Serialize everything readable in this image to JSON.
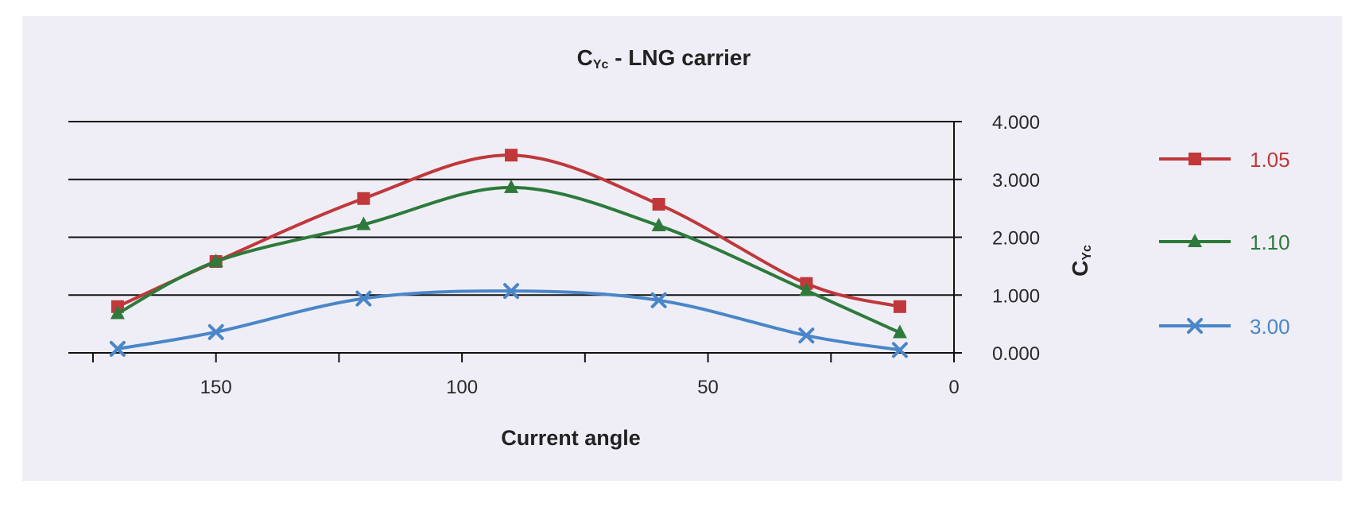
{
  "chart_data": {
    "type": "line",
    "title_main": "C",
    "title_sub": "Yc",
    "title_rest": " - LNG carrier",
    "xlabel": "Current angle",
    "ylabel_main": "C",
    "ylabel_sub": "Yc",
    "x_reversed": true,
    "xlim": [
      180,
      0
    ],
    "ylim": [
      0,
      4
    ],
    "x_ticks": [
      150,
      100,
      50,
      0
    ],
    "x_tick_labels": [
      "150",
      "100",
      "50",
      "0"
    ],
    "y_ticks": [
      0,
      1,
      2,
      3,
      4
    ],
    "y_tick_labels": [
      "0.000",
      "1.000",
      "2.000",
      "3.000",
      "4.000"
    ],
    "grid": true,
    "legend_position": "right",
    "x": [
      170,
      150,
      120,
      90,
      60,
      30,
      11
    ],
    "series": [
      {
        "name": "1.05",
        "color": "#c0383a",
        "marker": "square",
        "values": [
          0.8,
          1.58,
          2.67,
          3.42,
          2.57,
          1.2,
          0.8
        ]
      },
      {
        "name": "1.10",
        "color": "#2d7a3a",
        "marker": "triangle",
        "values": [
          0.68,
          1.58,
          2.22,
          2.86,
          2.2,
          1.08,
          0.35
        ]
      },
      {
        "name": "3.00",
        "color": "#4a86c8",
        "marker": "x",
        "values": [
          0.07,
          0.36,
          0.94,
          1.07,
          0.91,
          0.3,
          0.05
        ]
      }
    ]
  }
}
